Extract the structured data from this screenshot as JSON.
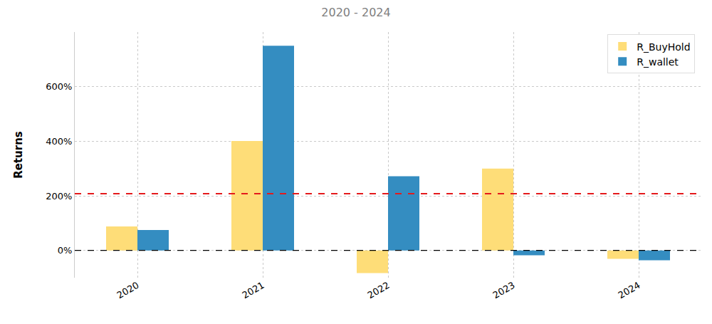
{
  "chart_data": {
    "type": "bar",
    "title": "2020 - 2024",
    "y_label": "Returns",
    "categories": [
      "2020",
      "2021",
      "2022",
      "2023",
      "2024"
    ],
    "series": [
      {
        "name": "R_BuyHold",
        "color": "#fedd78",
        "values": [
          88,
          401,
          -83,
          300,
          -31
        ]
      },
      {
        "name": "R_wallet",
        "color": "#348dc1",
        "values": [
          75,
          750,
          272,
          -18,
          -36
        ]
      }
    ],
    "ylim": [
      -100,
      800
    ],
    "yticks": [
      {
        "value": 0,
        "label": "0%"
      },
      {
        "value": 200,
        "label": "200%"
      },
      {
        "value": 400,
        "label": "400%"
      },
      {
        "value": 600,
        "label": "600%"
      }
    ],
    "grid": true,
    "legend": "upper right",
    "hlines": [
      {
        "value": 208,
        "color": "#e41a1c",
        "line_style": "dashed"
      },
      {
        "value": 0,
        "color": "#000000",
        "line_style": "dashed"
      }
    ]
  }
}
